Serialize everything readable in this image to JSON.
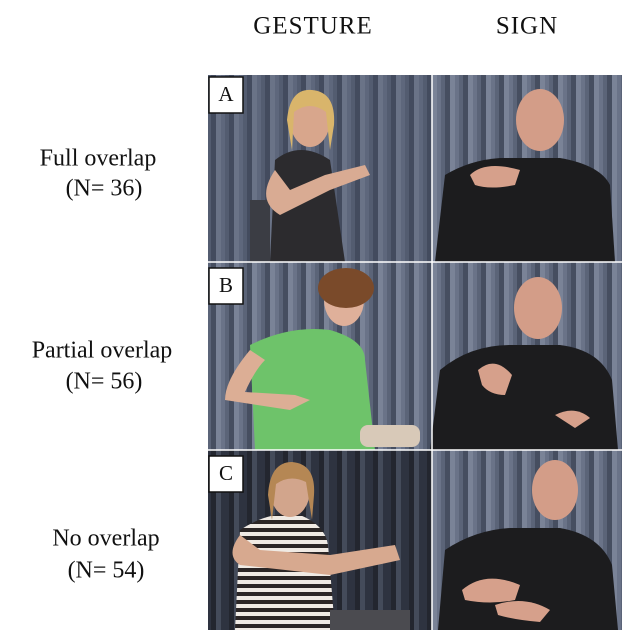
{
  "columns": [
    "GESTURE",
    "SIGN"
  ],
  "rows": [
    {
      "panel": "A",
      "label": "Full overlap",
      "count": "(N= 36)"
    },
    {
      "panel": "B",
      "label": "Partial overlap",
      "count": "(N= 56)"
    },
    {
      "panel": "C",
      "label": "No overlap",
      "count": "(N= 54)"
    }
  ]
}
